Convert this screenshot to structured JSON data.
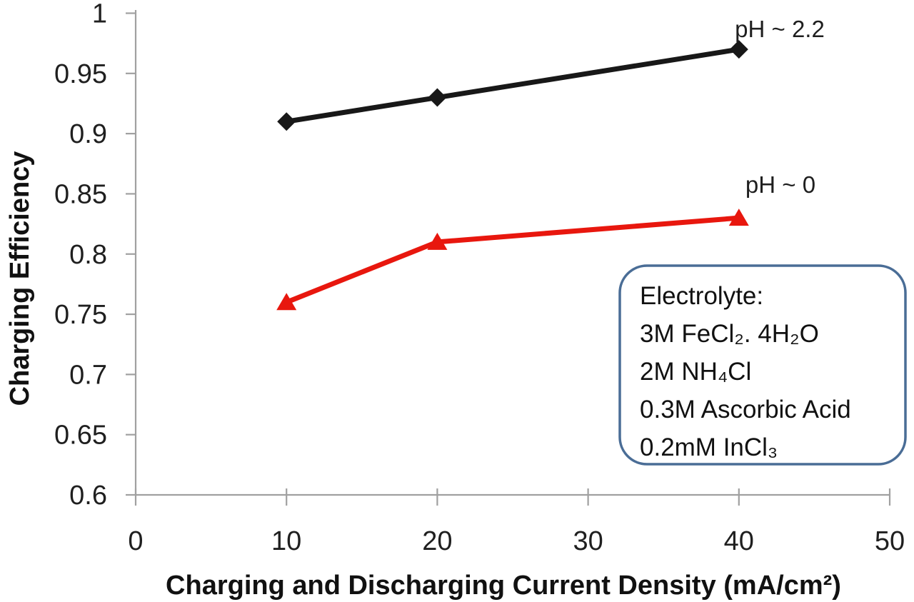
{
  "chart_data": {
    "type": "line",
    "title": "",
    "xlabel": "Charging and Discharging Current Density (mA/cm²)",
    "ylabel": "Charging Efficiency",
    "xlim": [
      0,
      50
    ],
    "ylim": [
      0.6,
      1.0
    ],
    "x_tick_labels": [
      "0",
      "10",
      "20",
      "30",
      "40",
      "50"
    ],
    "y_tick_labels": [
      "1",
      "0.95",
      "0.9",
      "0.85",
      "0.8",
      "0.75",
      "0.7",
      "0.65",
      "0.6"
    ],
    "grid": "off",
    "legend": "inline-series-labels",
    "series": [
      {
        "name": "pH ~ 2.2",
        "marker": "diamond",
        "color": "#181818",
        "x": [
          10,
          20,
          40
        ],
        "y": [
          0.91,
          0.93,
          0.97
        ]
      },
      {
        "name": "pH ~ 0",
        "marker": "triangle",
        "color": "#e8170e",
        "x": [
          10,
          20,
          40
        ],
        "y": [
          0.76,
          0.81,
          0.83
        ]
      }
    ]
  },
  "annotation_box": {
    "lines": [
      "Electrolyte:",
      "3M FeCl₂. 4H₂O",
      "2M NH₄Cl",
      "0.3M Ascorbic Acid",
      "0.2mM InCl₃"
    ]
  },
  "colors": {
    "axis": "#a0a0a0",
    "annotation_border": "#4a6d96",
    "series_ph22": "#181818",
    "series_ph0": "#e8170e"
  }
}
